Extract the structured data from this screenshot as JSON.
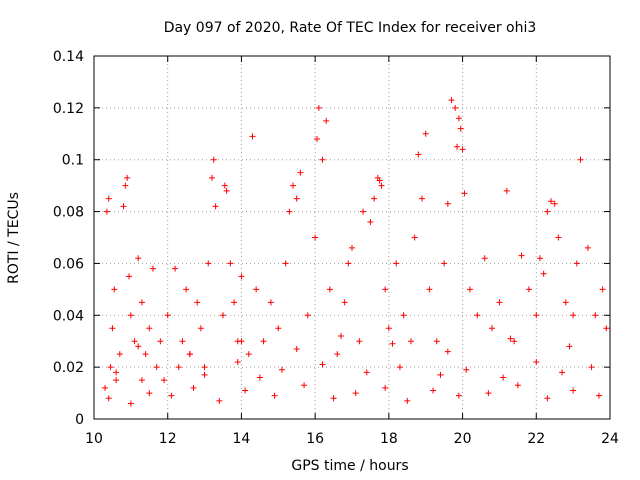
{
  "chart_data": {
    "type": "scatter",
    "title": "Day 097 of 2020, Rate Of TEC Index for receiver ohi3",
    "xlabel": "GPS time / hours",
    "ylabel": "ROTI / TECUs",
    "xlim": [
      10,
      24
    ],
    "ylim": [
      0,
      0.14
    ],
    "x_ticks": [
      "10",
      "12",
      "14",
      "16",
      "18",
      "20",
      "22",
      "24"
    ],
    "y_ticks": [
      "0",
      "0.02",
      "0.04",
      "0.06",
      "0.08",
      "0.1",
      "0.12",
      "0.14"
    ],
    "grid": true,
    "legend": "none",
    "marker": "plus",
    "color": "#ff0000",
    "series": [
      {
        "x": [
          10.3,
          10.35,
          10.4,
          10.45,
          10.5,
          10.55,
          10.6,
          10.7,
          10.8,
          10.85,
          10.9,
          10.95,
          11.0,
          11.1,
          11.2,
          11.3,
          11.4,
          11.5,
          11.6,
          11.7,
          11.8,
          11.9,
          12.0,
          12.2,
          12.4,
          12.5,
          12.6,
          12.8,
          12.9,
          13.0,
          13.1,
          13.2,
          13.25,
          13.3,
          13.5,
          13.55,
          13.6,
          13.7,
          13.8,
          13.9,
          14.0,
          14.2,
          14.3,
          14.4,
          14.6,
          14.8,
          15.0,
          15.2,
          15.3,
          15.4,
          15.5,
          15.6,
          15.8,
          16.0,
          16.05,
          16.1,
          16.2,
          16.3,
          16.4,
          16.6,
          16.8,
          16.9,
          17.0,
          17.2,
          17.3,
          17.5,
          17.6,
          17.7,
          17.75,
          17.8,
          17.9,
          18.0,
          18.2,
          18.4,
          18.6,
          18.7,
          18.8,
          18.9,
          19.0,
          19.1,
          19.3,
          19.5,
          19.6,
          19.7,
          19.8,
          19.85,
          19.9,
          19.95,
          20.0,
          20.05,
          20.2,
          20.4,
          20.6,
          20.8,
          21.0,
          21.2,
          21.4,
          21.6,
          21.8,
          22.0,
          22.1,
          22.2,
          22.3,
          22.4,
          22.5,
          22.6,
          22.8,
          23.0,
          23.1,
          23.2,
          23.4,
          23.6,
          23.8,
          23.9,
          10.4,
          11.0,
          11.5,
          12.1,
          12.7,
          13.4,
          14.1,
          14.9,
          15.7,
          16.5,
          17.1,
          17.9,
          18.5,
          19.2,
          19.9,
          20.7,
          21.5,
          22.3,
          23.0,
          23.7,
          10.6,
          11.3,
          12.3,
          13.0,
          13.9,
          14.5,
          15.1,
          16.2,
          17.4,
          18.3,
          19.4,
          20.1,
          21.1,
          22.0,
          22.7,
          23.5,
          11.2,
          12.6,
          14.0,
          15.5,
          16.7,
          18.1,
          19.6,
          21.3,
          22.9
        ],
        "y": [
          0.012,
          0.08,
          0.085,
          0.02,
          0.035,
          0.05,
          0.015,
          0.025,
          0.082,
          0.09,
          0.093,
          0.055,
          0.04,
          0.03,
          0.062,
          0.045,
          0.025,
          0.035,
          0.058,
          0.02,
          0.03,
          0.015,
          0.04,
          0.058,
          0.03,
          0.05,
          0.025,
          0.045,
          0.035,
          0.02,
          0.06,
          0.093,
          0.1,
          0.082,
          0.04,
          0.09,
          0.088,
          0.06,
          0.045,
          0.03,
          0.055,
          0.025,
          0.109,
          0.05,
          0.03,
          0.045,
          0.035,
          0.06,
          0.08,
          0.09,
          0.085,
          0.095,
          0.04,
          0.07,
          0.108,
          0.12,
          0.1,
          0.115,
          0.05,
          0.025,
          0.045,
          0.06,
          0.066,
          0.03,
          0.08,
          0.076,
          0.085,
          0.093,
          0.092,
          0.09,
          0.05,
          0.035,
          0.06,
          0.04,
          0.03,
          0.07,
          0.102,
          0.085,
          0.11,
          0.05,
          0.03,
          0.06,
          0.083,
          0.123,
          0.12,
          0.105,
          0.116,
          0.112,
          0.104,
          0.087,
          0.05,
          0.04,
          0.062,
          0.035,
          0.045,
          0.088,
          0.03,
          0.063,
          0.05,
          0.04,
          0.062,
          0.056,
          0.08,
          0.084,
          0.083,
          0.07,
          0.045,
          0.04,
          0.06,
          0.1,
          0.066,
          0.04,
          0.05,
          0.035,
          0.008,
          0.006,
          0.01,
          0.009,
          0.012,
          0.007,
          0.011,
          0.009,
          0.013,
          0.008,
          0.01,
          0.012,
          0.007,
          0.011,
          0.009,
          0.01,
          0.013,
          0.008,
          0.011,
          0.009,
          0.018,
          0.015,
          0.02,
          0.017,
          0.022,
          0.016,
          0.019,
          0.021,
          0.018,
          0.02,
          0.017,
          0.019,
          0.016,
          0.022,
          0.018,
          0.02,
          0.028,
          0.025,
          0.03,
          0.027,
          0.032,
          0.029,
          0.026,
          0.031,
          0.028
        ]
      }
    ]
  }
}
